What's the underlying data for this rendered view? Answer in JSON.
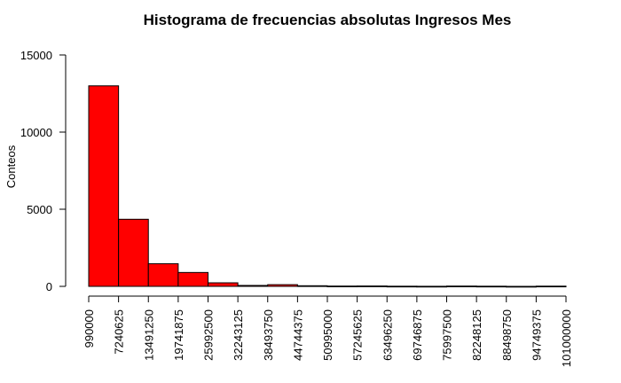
{
  "chart_data": {
    "type": "bar",
    "title": "Histograma de frecuencias absolutas Ingresos Mes",
    "xlabel": "",
    "ylabel": "Conteos",
    "bin_edges": [
      990000,
      7240625,
      13491250,
      19741875,
      25992500,
      32243125,
      38493750,
      44744375,
      50995000,
      57245625,
      63496250,
      69746875,
      75997500,
      82248125,
      88498750,
      94749375,
      101000000
    ],
    "x_tick_labels": [
      "990000",
      "7240625",
      "13491250",
      "19741875",
      "25992500",
      "32243125",
      "38493750",
      "44744375",
      "50995000",
      "57245625",
      "63496250",
      "69746875",
      "75997500",
      "82248125",
      "88498750",
      "94749375",
      "101000000"
    ],
    "values": [
      13000,
      4350,
      1470,
      900,
      230,
      60,
      110,
      40,
      20,
      25,
      10,
      5,
      20,
      10,
      0,
      15
    ],
    "y_ticks": [
      0,
      5000,
      10000,
      15000
    ],
    "y_tick_labels": [
      "0",
      "5000",
      "10000",
      "15000"
    ],
    "ylim": [
      0,
      15000
    ],
    "bar_color": "#ff0000",
    "grid": false
  }
}
